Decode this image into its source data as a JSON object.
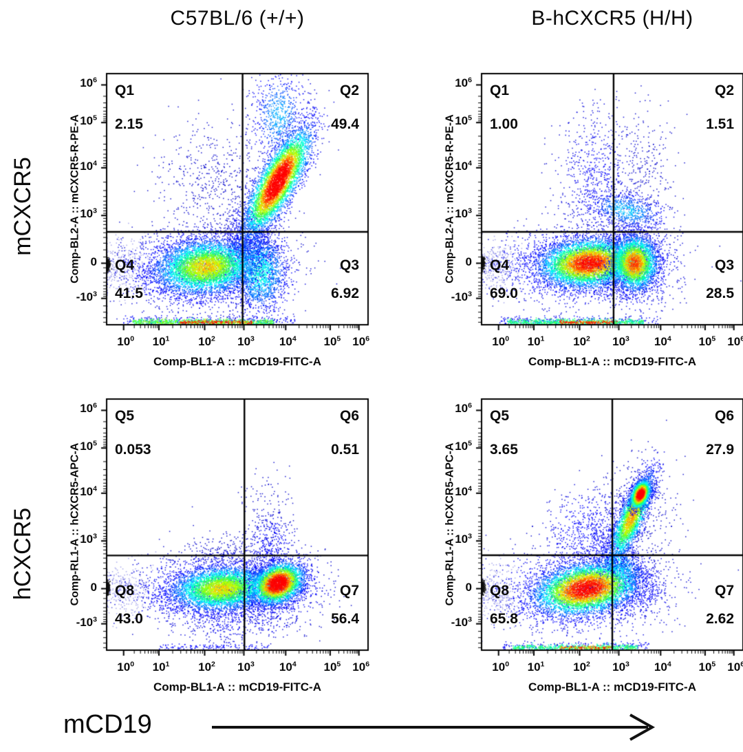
{
  "figure": {
    "column_titles": [
      "C57BL/6 (+/+)",
      "B-hCXCR5 (H/H)"
    ],
    "row_labels": [
      "mCXCR5",
      "hCXCR5"
    ],
    "bottom_arrow_label": "mCD19"
  },
  "chart_data": {
    "type": "scatter",
    "subtype": "flow-cytometry-pseudocolor-density-plot",
    "layout": "2x2 grid; columns = mouse strains, rows = stained marker",
    "values_unit": "percent of gated cells per quadrant",
    "axes": {
      "x_label": "Comp-BL1-A :: mCD19-FITC-A",
      "x_scale": "biexponential",
      "y_scale": "biexponential",
      "x_ticks": [
        {
          "base": "10",
          "exp": "0",
          "frac": 0.065
        },
        {
          "base": "10",
          "exp": "1",
          "frac": 0.2
        },
        {
          "base": "10",
          "exp": "2",
          "frac": 0.375
        },
        {
          "base": "10",
          "exp": "3",
          "frac": 0.525
        },
        {
          "base": "10",
          "exp": "4",
          "frac": 0.685
        },
        {
          "base": "10",
          "exp": "5",
          "frac": 0.855
        },
        {
          "base": "10",
          "exp": "6",
          "frac": 0.965
        }
      ],
      "y_ticks": [
        {
          "base": "10",
          "exp": "6",
          "frac": 0.045
        },
        {
          "base": "10",
          "exp": "5",
          "frac": 0.195
        },
        {
          "base": "10",
          "exp": "4",
          "frac": 0.375
        },
        {
          "base": "10",
          "exp": "3",
          "frac": 0.565
        },
        {
          "base": "0",
          "exp": "",
          "frac": 0.755
        },
        {
          "base": "-10",
          "exp": "3",
          "frac": 0.895
        }
      ]
    },
    "plots": [
      {
        "id": "top-left",
        "column_title": "C57BL/6 (+/+)",
        "row_label": "mCXCR5",
        "x_label": "Comp-BL1-A :: mCD19-FITC-A",
        "y_label": "Comp-BL2-A :: mCXCR5-R-PE-A",
        "gates": {
          "x_frac": 0.52,
          "y_frac": 0.63
        },
        "quadrants": [
          {
            "name": "Q1",
            "value": "2.15",
            "corner": "tl"
          },
          {
            "name": "Q2",
            "value": "49.4",
            "corner": "tr"
          },
          {
            "name": "Q3",
            "value": "6.92",
            "corner": "br"
          },
          {
            "name": "Q4",
            "value": "41.5",
            "corner": "bl"
          }
        ],
        "populations": [
          {
            "cx": 0.06,
            "cy": 0.77,
            "sx": 0.05,
            "sy": 0.05,
            "rot": 0,
            "n": 300,
            "peak": 0,
            "alpha": 0.35
          },
          {
            "cx": 0.42,
            "cy": 0.42,
            "sx": 0.11,
            "sy": 0.14,
            "rot": 0,
            "n": 550,
            "peak": 0
          },
          {
            "cx": 0.36,
            "cy": 0.78,
            "sx": 0.16,
            "sy": 0.08,
            "rot": 0,
            "n": 1500,
            "peak": 0.12
          },
          {
            "cx": 0.66,
            "cy": 0.17,
            "sx": 0.05,
            "sy": 0.09,
            "rot": 0,
            "n": 700,
            "peak": 0.28
          },
          {
            "cx": 0.545,
            "cy": 0.655,
            "sx": 0.04,
            "sy": 0.06,
            "rot": 0,
            "n": 600,
            "peak": 0.22
          },
          {
            "cx": 0.585,
            "cy": 0.79,
            "sx": 0.055,
            "sy": 0.08,
            "rot": 0,
            "n": 1800,
            "peak": 0.38
          },
          {
            "cx": 0.38,
            "cy": 0.77,
            "sx": 0.1,
            "sy": 0.055,
            "rot": -6,
            "n": 5000,
            "peak": 0.68
          },
          {
            "cx": 0.655,
            "cy": 0.43,
            "sx": 0.115,
            "sy": 0.034,
            "rot": -62,
            "n": 5200,
            "peak": 1.0
          },
          {
            "strip": true,
            "x0": 0.06,
            "x1": 0.72,
            "y": 0.985,
            "jit": 0.01,
            "n": 300,
            "peak": 0.05
          },
          {
            "strip": true,
            "x0": 0.1,
            "x1": 0.64,
            "y": 0.99,
            "jit": 0.006,
            "n": 800,
            "peak": 0.55
          },
          {
            "strip": true,
            "x0": 0.28,
            "x1": 0.56,
            "y": 0.99,
            "jit": 0.0035,
            "n": 220,
            "peak": 0.92
          },
          {
            "cx": 0.004,
            "cy": 0.762,
            "sx": 0.004,
            "sy": 0.013,
            "rot": 0,
            "n": 260,
            "peak": 0,
            "color": "#141414"
          }
        ]
      },
      {
        "id": "top-right",
        "column_title": "B-hCXCR5 (H/H)",
        "row_label": "mCXCR5",
        "x_label": "Comp-BL1-A :: mCD19-FITC-A",
        "y_label": "Comp-BL2-A :: mCXCR5-R-PE-A",
        "gates": {
          "x_frac": 0.505,
          "y_frac": 0.63
        },
        "quadrants": [
          {
            "name": "Q1",
            "value": "1.00",
            "corner": "tl"
          },
          {
            "name": "Q2",
            "value": "1.51",
            "corner": "tr"
          },
          {
            "name": "Q3",
            "value": "28.5",
            "corner": "br"
          },
          {
            "name": "Q4",
            "value": "69.0",
            "corner": "bl"
          }
        ],
        "populations": [
          {
            "cx": 0.06,
            "cy": 0.77,
            "sx": 0.05,
            "sy": 0.05,
            "rot": 0,
            "n": 320,
            "peak": 0,
            "alpha": 0.35
          },
          {
            "cx": 0.44,
            "cy": 0.42,
            "sx": 0.075,
            "sy": 0.15,
            "rot": 0,
            "n": 650,
            "peak": 0.05
          },
          {
            "cx": 0.62,
            "cy": 0.38,
            "sx": 0.06,
            "sy": 0.12,
            "rot": 0,
            "n": 250,
            "peak": 0
          },
          {
            "cx": 0.38,
            "cy": 0.765,
            "sx": 0.16,
            "sy": 0.075,
            "rot": 0,
            "n": 1500,
            "peak": 0.15
          },
          {
            "cx": 0.59,
            "cy": 0.76,
            "sx": 0.075,
            "sy": 0.08,
            "rot": 0,
            "n": 700,
            "peak": 0.18
          },
          {
            "cx": 0.555,
            "cy": 0.545,
            "sx": 0.035,
            "sy": 0.075,
            "rot": -75,
            "n": 700,
            "peak": 0.3
          },
          {
            "cx": 0.41,
            "cy": 0.755,
            "sx": 0.095,
            "sy": 0.048,
            "rot": -5,
            "n": 5200,
            "peak": 0.88
          },
          {
            "cx": 0.585,
            "cy": 0.755,
            "sx": 0.045,
            "sy": 0.055,
            "rot": 0,
            "n": 2800,
            "peak": 0.8
          },
          {
            "strip": true,
            "x0": 0.07,
            "x1": 0.68,
            "y": 0.985,
            "jit": 0.01,
            "n": 260,
            "peak": 0.05
          },
          {
            "strip": true,
            "x0": 0.1,
            "x1": 0.62,
            "y": 0.99,
            "jit": 0.006,
            "n": 700,
            "peak": 0.5
          },
          {
            "strip": true,
            "x0": 0.3,
            "x1": 0.52,
            "y": 0.99,
            "jit": 0.0035,
            "n": 200,
            "peak": 0.9
          },
          {
            "cx": 0.004,
            "cy": 0.755,
            "sx": 0.004,
            "sy": 0.013,
            "rot": 0,
            "n": 260,
            "peak": 0,
            "color": "#141414"
          }
        ]
      },
      {
        "id": "bottom-left",
        "column_title": "C57BL/6 (+/+)",
        "row_label": "hCXCR5",
        "x_label": "Comp-BL1-A :: mCD19-FITC-A",
        "y_label": "Comp-RL1-A :: hCXCR5-APC-A",
        "gates": {
          "x_frac": 0.527,
          "y_frac": 0.623
        },
        "quadrants": [
          {
            "name": "Q5",
            "value": "0.053",
            "corner": "tl"
          },
          {
            "name": "Q6",
            "value": "0.51",
            "corner": "tr"
          },
          {
            "name": "Q7",
            "value": "56.4",
            "corner": "br"
          },
          {
            "name": "Q8",
            "value": "43.0",
            "corner": "bl"
          }
        ],
        "populations": [
          {
            "cx": 0.06,
            "cy": 0.76,
            "sx": 0.05,
            "sy": 0.05,
            "rot": 0,
            "n": 300,
            "peak": 0,
            "alpha": 0.35
          },
          {
            "cx": 0.42,
            "cy": 0.765,
            "sx": 0.16,
            "sy": 0.07,
            "rot": 0,
            "n": 1300,
            "peak": 0.12
          },
          {
            "cx": 0.655,
            "cy": 0.75,
            "sx": 0.085,
            "sy": 0.06,
            "rot": 0,
            "n": 800,
            "peak": 0.18
          },
          {
            "cx": 0.45,
            "cy": 0.6,
            "sx": 0.09,
            "sy": 0.035,
            "rot": 0,
            "n": 200,
            "peak": 0
          },
          {
            "cx": 0.63,
            "cy": 0.58,
            "sx": 0.04,
            "sy": 0.06,
            "rot": 0,
            "n": 300,
            "peak": 0.1
          },
          {
            "cx": 0.62,
            "cy": 0.44,
            "sx": 0.05,
            "sy": 0.08,
            "rot": 0,
            "n": 130,
            "peak": 0
          },
          {
            "cx": 0.5,
            "cy": 0.89,
            "sx": 0.13,
            "sy": 0.045,
            "rot": 0,
            "n": 300,
            "peak": 0.05
          },
          {
            "cx": 0.44,
            "cy": 0.755,
            "sx": 0.1,
            "sy": 0.045,
            "rot": -4,
            "n": 4500,
            "peak": 0.66
          },
          {
            "cx": 0.655,
            "cy": 0.735,
            "sx": 0.052,
            "sy": 0.038,
            "rot": -28,
            "n": 3200,
            "peak": 1.0
          },
          {
            "strip": true,
            "x0": 0.2,
            "x1": 0.62,
            "y": 0.99,
            "jit": 0.008,
            "n": 150,
            "peak": 0.08
          },
          {
            "cx": 0.004,
            "cy": 0.752,
            "sx": 0.004,
            "sy": 0.013,
            "rot": 0,
            "n": 260,
            "peak": 0,
            "color": "#141414"
          }
        ]
      },
      {
        "id": "bottom-right",
        "column_title": "B-hCXCR5 (H/H)",
        "row_label": "hCXCR5",
        "x_label": "Comp-BL1-A :: mCD19-FITC-A",
        "y_label": "Comp-RL1-A :: hCXCR5-APC-A",
        "gates": {
          "x_frac": 0.5,
          "y_frac": 0.622
        },
        "quadrants": [
          {
            "name": "Q5",
            "value": "3.65",
            "corner": "tl"
          },
          {
            "name": "Q6",
            "value": "27.9",
            "corner": "tr"
          },
          {
            "name": "Q7",
            "value": "2.62",
            "corner": "br"
          },
          {
            "name": "Q8",
            "value": "65.8",
            "corner": "bl"
          }
        ],
        "populations": [
          {
            "cx": 0.06,
            "cy": 0.765,
            "sx": 0.05,
            "sy": 0.05,
            "rot": 0,
            "n": 300,
            "peak": 0,
            "alpha": 0.35
          },
          {
            "cx": 0.38,
            "cy": 0.765,
            "sx": 0.16,
            "sy": 0.08,
            "rot": 0,
            "n": 1400,
            "peak": 0.15
          },
          {
            "cx": 0.6,
            "cy": 0.47,
            "sx": 0.075,
            "sy": 0.12,
            "rot": 0,
            "n": 350,
            "peak": 0
          },
          {
            "cx": 0.42,
            "cy": 0.54,
            "sx": 0.085,
            "sy": 0.085,
            "rot": 0,
            "n": 700,
            "peak": 0.1
          },
          {
            "cx": 0.58,
            "cy": 0.77,
            "sx": 0.07,
            "sy": 0.05,
            "rot": 0,
            "n": 350,
            "peak": 0.08
          },
          {
            "cx": 0.525,
            "cy": 0.66,
            "sx": 0.035,
            "sy": 0.055,
            "rot": -60,
            "n": 700,
            "peak": 0.35
          },
          {
            "cx": 0.4,
            "cy": 0.755,
            "sx": 0.1,
            "sy": 0.05,
            "rot": -10,
            "n": 5200,
            "peak": 0.92
          },
          {
            "cx": 0.575,
            "cy": 0.47,
            "sx": 0.095,
            "sy": 0.024,
            "rot": -68,
            "n": 2600,
            "peak": 0.72
          },
          {
            "cx": 0.608,
            "cy": 0.38,
            "sx": 0.03,
            "sy": 0.017,
            "rot": -68,
            "n": 1400,
            "peak": 1.0
          },
          {
            "strip": true,
            "x0": 0.08,
            "x1": 0.64,
            "y": 0.985,
            "jit": 0.01,
            "n": 220,
            "peak": 0.05
          },
          {
            "strip": true,
            "x0": 0.12,
            "x1": 0.6,
            "y": 0.99,
            "jit": 0.006,
            "n": 550,
            "peak": 0.5
          },
          {
            "strip": true,
            "x0": 0.3,
            "x1": 0.5,
            "y": 0.99,
            "jit": 0.0035,
            "n": 150,
            "peak": 0.85
          },
          {
            "cx": 0.004,
            "cy": 0.75,
            "sx": 0.004,
            "sy": 0.013,
            "rot": 0,
            "n": 260,
            "peak": 0,
            "color": "#141414"
          }
        ]
      }
    ]
  }
}
